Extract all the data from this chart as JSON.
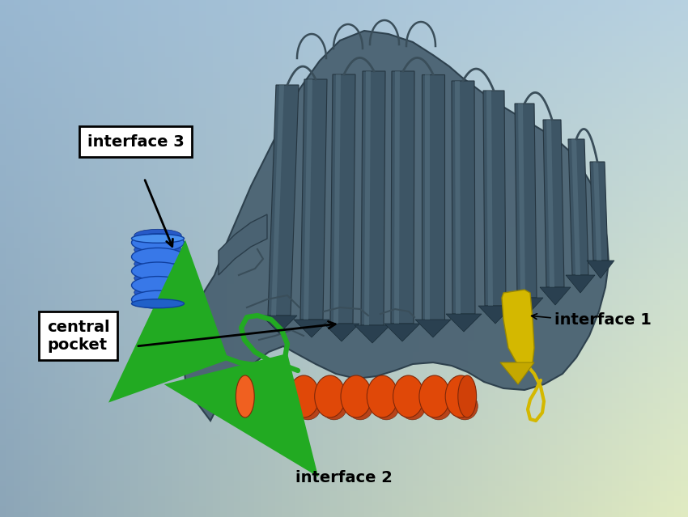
{
  "figsize": [
    8.5,
    6.39
  ],
  "dpi": 100,
  "bg_corners": {
    "tl": [
      0.6,
      0.72,
      0.82
    ],
    "tr": [
      0.72,
      0.82,
      0.88
    ],
    "bl": [
      0.55,
      0.65,
      0.72
    ],
    "br": [
      0.85,
      0.9,
      0.76
    ]
  },
  "protein_color": "#4a6272",
  "protein_dark": "#3a5060",
  "protein_light": "#566e80",
  "blue_dark": "#1a50c0",
  "blue_mid": "#2060d8",
  "blue_light": "#4488f0",
  "green_color": "#22aa22",
  "orange_dark": "#c03800",
  "orange_mid": "#e04808",
  "orange_light": "#f06020",
  "yellow_color": "#d4b800",
  "yellow_light": "#f0d020",
  "labels": {
    "interface1": "interface 1",
    "interface2": "interface 2",
    "interface3": "interface 3",
    "central_pocket": "central\npocket"
  },
  "label_fontsize": 14,
  "annotation_lw": 2.0
}
